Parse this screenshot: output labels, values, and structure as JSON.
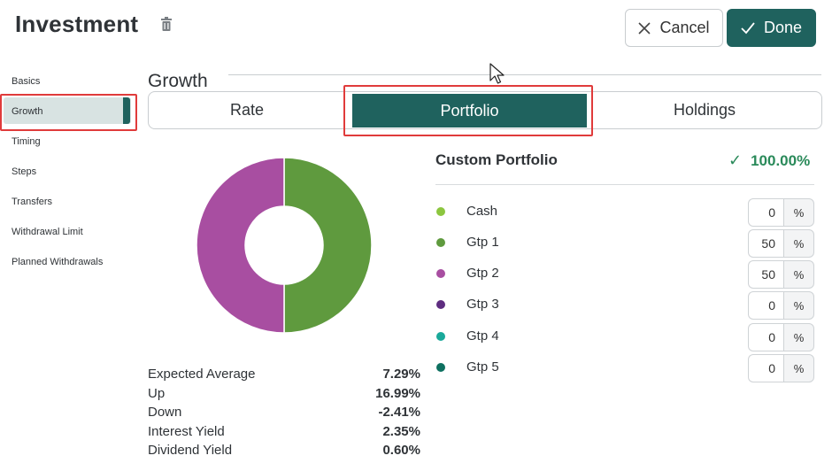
{
  "header": {
    "title": "Investment",
    "cancel_label": "Cancel",
    "done_label": "Done"
  },
  "sidebar": {
    "items": [
      {
        "label": "Basics"
      },
      {
        "label": "Growth"
      },
      {
        "label": "Timing"
      },
      {
        "label": "Steps"
      },
      {
        "label": "Transfers"
      },
      {
        "label": "Withdrawal Limit"
      },
      {
        "label": "Planned Withdrawals"
      }
    ],
    "active": "Growth"
  },
  "section": {
    "title": "Growth",
    "tabs": [
      {
        "label": "Rate"
      },
      {
        "label": "Portfolio"
      },
      {
        "label": "Holdings"
      }
    ],
    "active_tab": "Portfolio"
  },
  "stats": [
    {
      "label": "Expected Average",
      "value": "7.29%"
    },
    {
      "label": "Up",
      "value": "16.99%"
    },
    {
      "label": "Down",
      "value": "-2.41%"
    },
    {
      "label": "Interest Yield",
      "value": "2.35%"
    },
    {
      "label": "Dividend Yield",
      "value": "0.60%"
    }
  ],
  "portfolio": {
    "title": "Custom Portfolio",
    "total": "100.00%",
    "unit": "%",
    "allocations": [
      {
        "label": "Cash",
        "value": "0",
        "color": "#8cc63f"
      },
      {
        "label": "Gtp 1",
        "value": "50",
        "color": "#5f9a3e"
      },
      {
        "label": "Gtp 2",
        "value": "50",
        "color": "#a84ea1"
      },
      {
        "label": "Gtp 3",
        "value": "0",
        "color": "#5e2d80"
      },
      {
        "label": "Gtp 4",
        "value": "0",
        "color": "#1aa99a"
      },
      {
        "label": "Gtp 5",
        "value": "0",
        "color": "#0e7060"
      }
    ]
  },
  "colors": {
    "accent": "#1f625e",
    "highlight": "#e03b3b",
    "success": "#2a8a5a"
  },
  "chart_data": {
    "type": "pie",
    "categories": [
      "Gtp 1",
      "Gtp 2"
    ],
    "values": [
      50,
      50
    ],
    "colors": [
      "#5f9a3e",
      "#a84ea1"
    ],
    "donut": true
  }
}
